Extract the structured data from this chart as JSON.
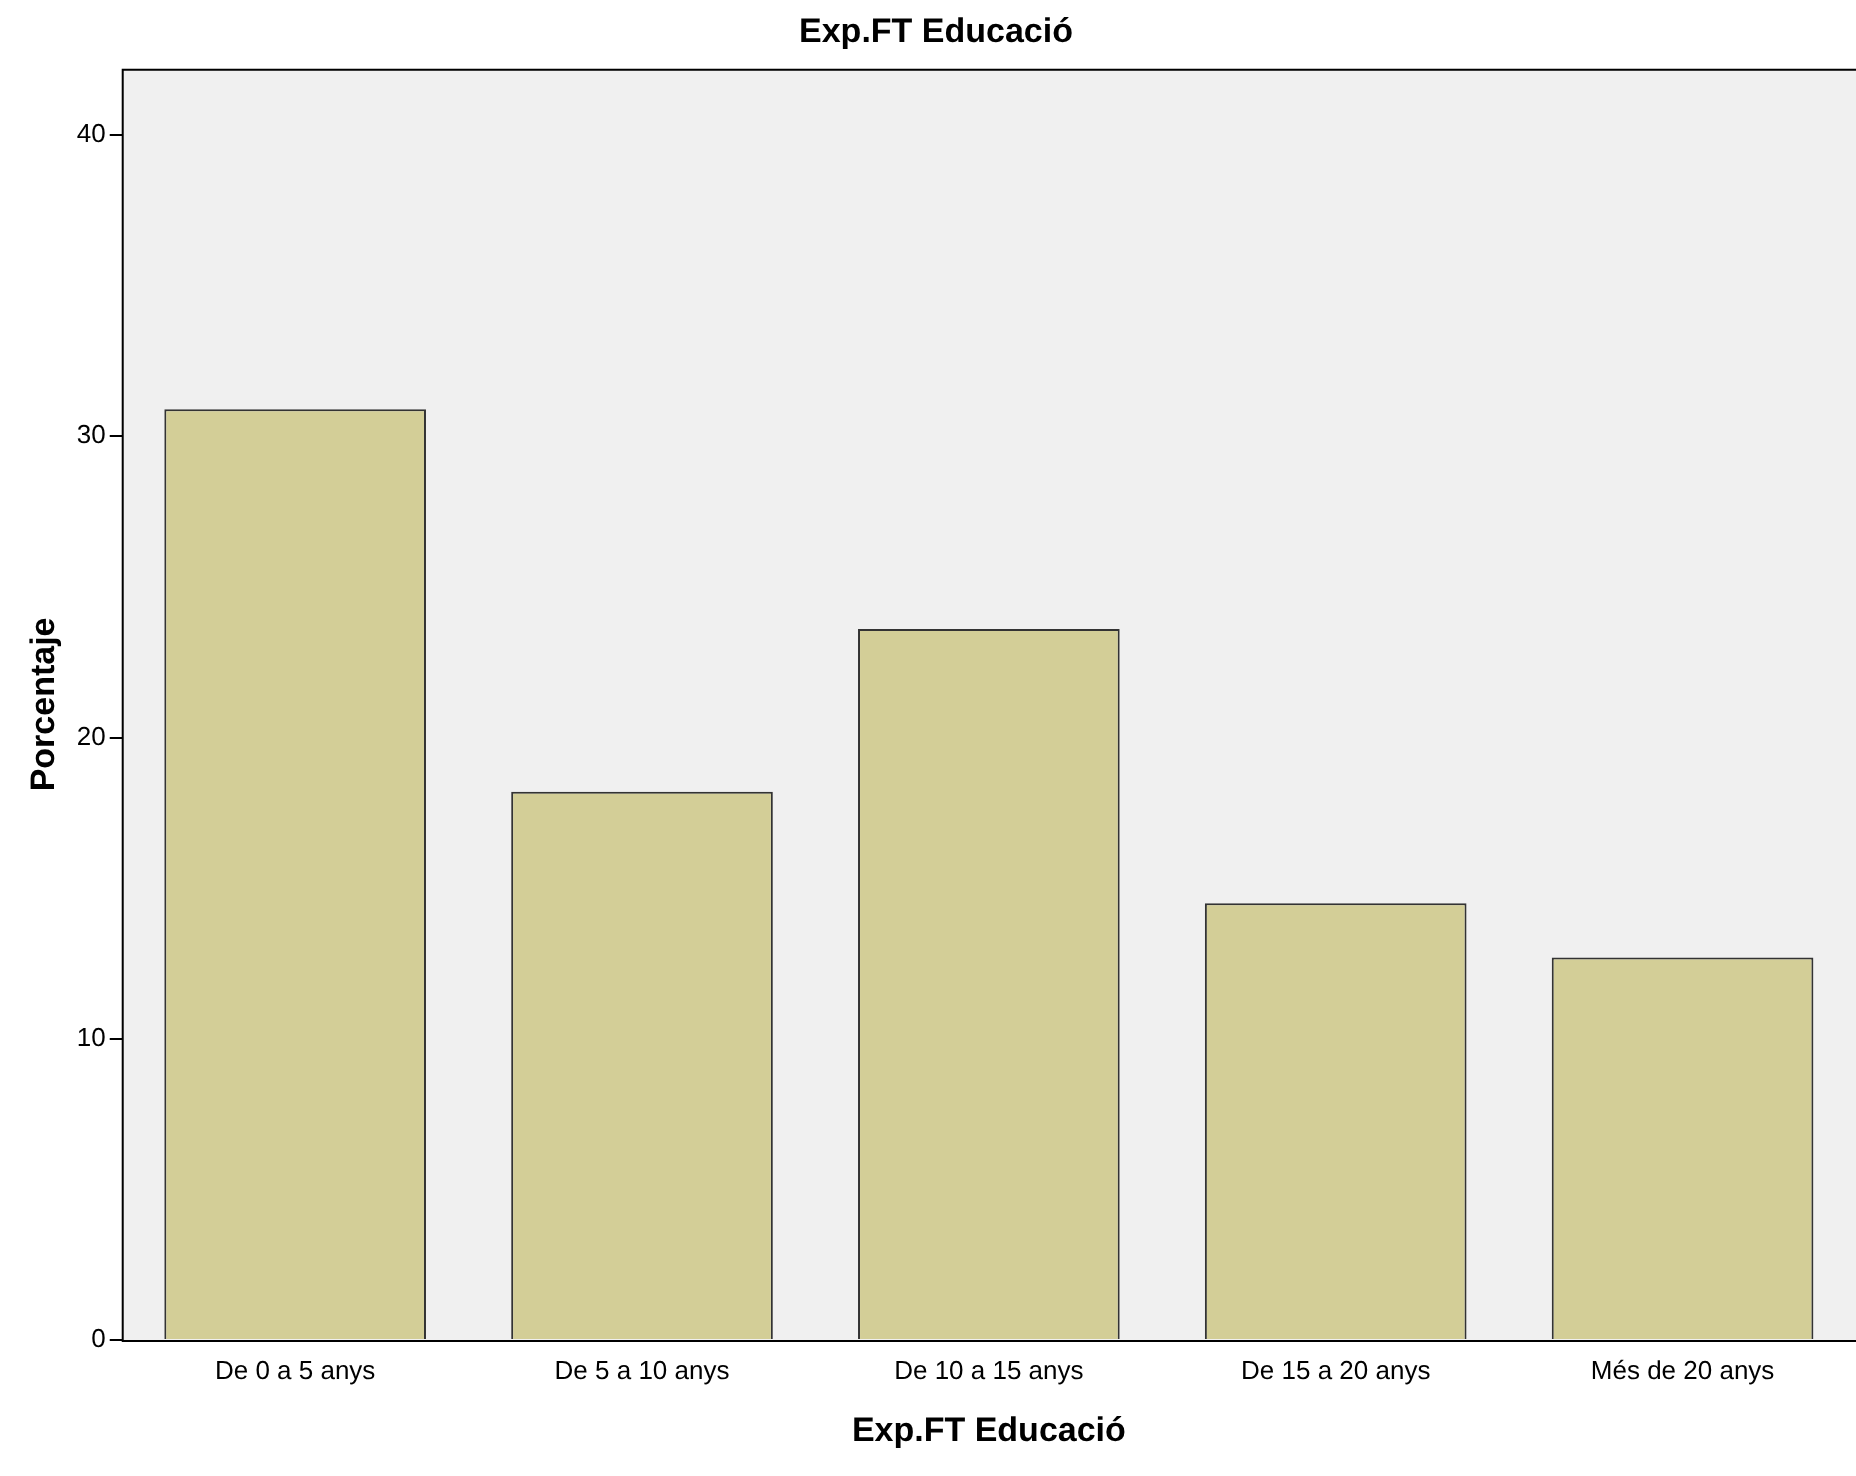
{
  "chart_data": {
    "type": "bar",
    "title": "Exp.FT Educació",
    "xlabel": "Exp.FT Educació",
    "ylabel": "Porcentaje",
    "categories": [
      "De 0 a 5 anys",
      "De 5 a 10 anys",
      "De 10 a 15 anys",
      "De 15 a 20 anys",
      "Més de 20 anys"
    ],
    "values": [
      30.9,
      18.2,
      23.6,
      14.5,
      12.7
    ],
    "color": "#d3ce97",
    "ylim": [
      0,
      42.2
    ],
    "yticks": [
      0,
      10,
      20,
      30,
      40
    ],
    "grid": false,
    "legend": false
  }
}
